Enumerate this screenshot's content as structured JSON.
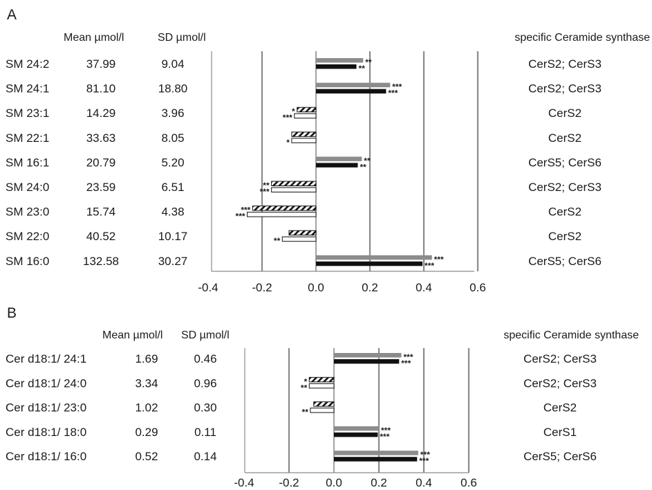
{
  "chart_data": [
    {
      "type": "bar",
      "panel_label": "A",
      "table_headers": {
        "mean": "Mean µmol/l",
        "sd": "SD µmol/l",
        "synthase": "specific Ceramide synthase"
      },
      "xlim": [
        -0.4,
        0.6
      ],
      "x_ticks": [
        "-0.4",
        "-0.2",
        "0.0",
        "0.2",
        "0.4",
        "0.6"
      ],
      "gridlines_at": [
        -0.2,
        0.2,
        0.4,
        0.6
      ],
      "series_style": {
        "gray": "#8c8c8c",
        "black": "#111111",
        "hatched": "hatch",
        "white": "#ffffff"
      },
      "rows": [
        {
          "label": "SM 24:2",
          "mean": "37.99",
          "sd": "9.04",
          "synthase": "CerS2; CerS3",
          "bars": [
            {
              "style": "gray",
              "value": 0.175,
              "stars": "**"
            },
            {
              "style": "black",
              "value": 0.15,
              "stars": "**"
            }
          ]
        },
        {
          "label": "SM 24:1",
          "mean": "81.10",
          "sd": "18.80",
          "synthase": "CerS2; CerS3",
          "bars": [
            {
              "style": "gray",
              "value": 0.275,
              "stars": "***"
            },
            {
              "style": "black",
              "value": 0.26,
              "stars": "***"
            }
          ]
        },
        {
          "label": "SM 23:1",
          "mean": "14.29",
          "sd": "3.96",
          "synthase": "CerS2",
          "bars": [
            {
              "style": "hatched",
              "value": -0.07,
              "stars": "*"
            },
            {
              "style": "white",
              "value": -0.08,
              "stars": "***"
            }
          ]
        },
        {
          "label": "SM 22:1",
          "mean": "33.63",
          "sd": "8.05",
          "synthase": "CerS2",
          "bars": [
            {
              "style": "hatched",
              "value": -0.09,
              "stars": ""
            },
            {
              "style": "white",
              "value": -0.09,
              "stars": "*"
            }
          ]
        },
        {
          "label": "SM 16:1",
          "mean": "20.79",
          "sd": "5.20",
          "synthase": "CerS5; CerS6",
          "bars": [
            {
              "style": "gray",
              "value": 0.17,
              "stars": "**"
            },
            {
              "style": "black",
              "value": 0.155,
              "stars": "**"
            }
          ]
        },
        {
          "label": "SM 24:0",
          "mean": "23.59",
          "sd": "6.51",
          "synthase": "CerS2; CerS3",
          "bars": [
            {
              "style": "hatched",
              "value": -0.165,
              "stars": "**"
            },
            {
              "style": "white",
              "value": -0.165,
              "stars": "***"
            }
          ]
        },
        {
          "label": "SM 23:0",
          "mean": "15.74",
          "sd": "4.38",
          "synthase": "CerS2",
          "bars": [
            {
              "style": "hatched",
              "value": -0.235,
              "stars": "***"
            },
            {
              "style": "white",
              "value": -0.255,
              "stars": "***"
            }
          ]
        },
        {
          "label": "SM 22:0",
          "mean": "40.52",
          "sd": "10.17",
          "synthase": "CerS2",
          "bars": [
            {
              "style": "hatched",
              "value": -0.1,
              "stars": ""
            },
            {
              "style": "white",
              "value": -0.125,
              "stars": "**"
            }
          ]
        },
        {
          "label": "SM 16:0",
          "mean": "132.58",
          "sd": "30.27",
          "synthase": "CerS5; CerS6",
          "bars": [
            {
              "style": "gray",
              "value": 0.43,
              "stars": "***"
            },
            {
              "style": "black",
              "value": 0.395,
              "stars": "***"
            }
          ]
        }
      ]
    },
    {
      "type": "bar",
      "panel_label": "B",
      "table_headers": {
        "mean": "Mean µmol/l",
        "sd": "SD µmol/l",
        "synthase": "specific Ceramide synthase"
      },
      "xlim": [
        -0.4,
        0.6
      ],
      "x_ticks": [
        "-0.4",
        "-0.2",
        "0.0",
        "0.2",
        "0.4",
        "0.6"
      ],
      "gridlines_at": [
        -0.2,
        0.2,
        0.4,
        0.6
      ],
      "series_style": {
        "gray": "#8c8c8c",
        "black": "#111111",
        "hatched": "hatch",
        "white": "#ffffff"
      },
      "rows": [
        {
          "label": "Cer d18:1/ 24:1",
          "mean": "1.69",
          "sd": "0.46",
          "synthase": "CerS2; CerS3",
          "bars": [
            {
              "style": "gray",
              "value": 0.3,
              "stars": "***"
            },
            {
              "style": "black",
              "value": 0.29,
              "stars": "***"
            }
          ]
        },
        {
          "label": "Cer d18:1/ 24:0",
          "mean": "3.34",
          "sd": "0.96",
          "synthase": "CerS2; CerS3",
          "bars": [
            {
              "style": "hatched",
              "value": -0.11,
              "stars": "*"
            },
            {
              "style": "white",
              "value": -0.11,
              "stars": "**"
            }
          ]
        },
        {
          "label": "Cer d18:1/ 23:0",
          "mean": "1.02",
          "sd": "0.30",
          "synthase": "CerS2",
          "bars": [
            {
              "style": "hatched",
              "value": -0.09,
              "stars": ""
            },
            {
              "style": "white",
              "value": -0.105,
              "stars": "**"
            }
          ]
        },
        {
          "label": "Cer d18:1/ 18:0",
          "mean": "0.29",
          "sd": "0.11",
          "synthase": "CerS1",
          "bars": [
            {
              "style": "gray",
              "value": 0.2,
              "stars": "***"
            },
            {
              "style": "black",
              "value": 0.195,
              "stars": "***"
            }
          ]
        },
        {
          "label": "Cer d18:1/ 16:0",
          "mean": "0.52",
          "sd": "0.14",
          "synthase": "CerS5; CerS6",
          "bars": [
            {
              "style": "gray",
              "value": 0.375,
              "stars": "***"
            },
            {
              "style": "black",
              "value": 0.37,
              "stars": "***"
            }
          ]
        }
      ]
    }
  ]
}
